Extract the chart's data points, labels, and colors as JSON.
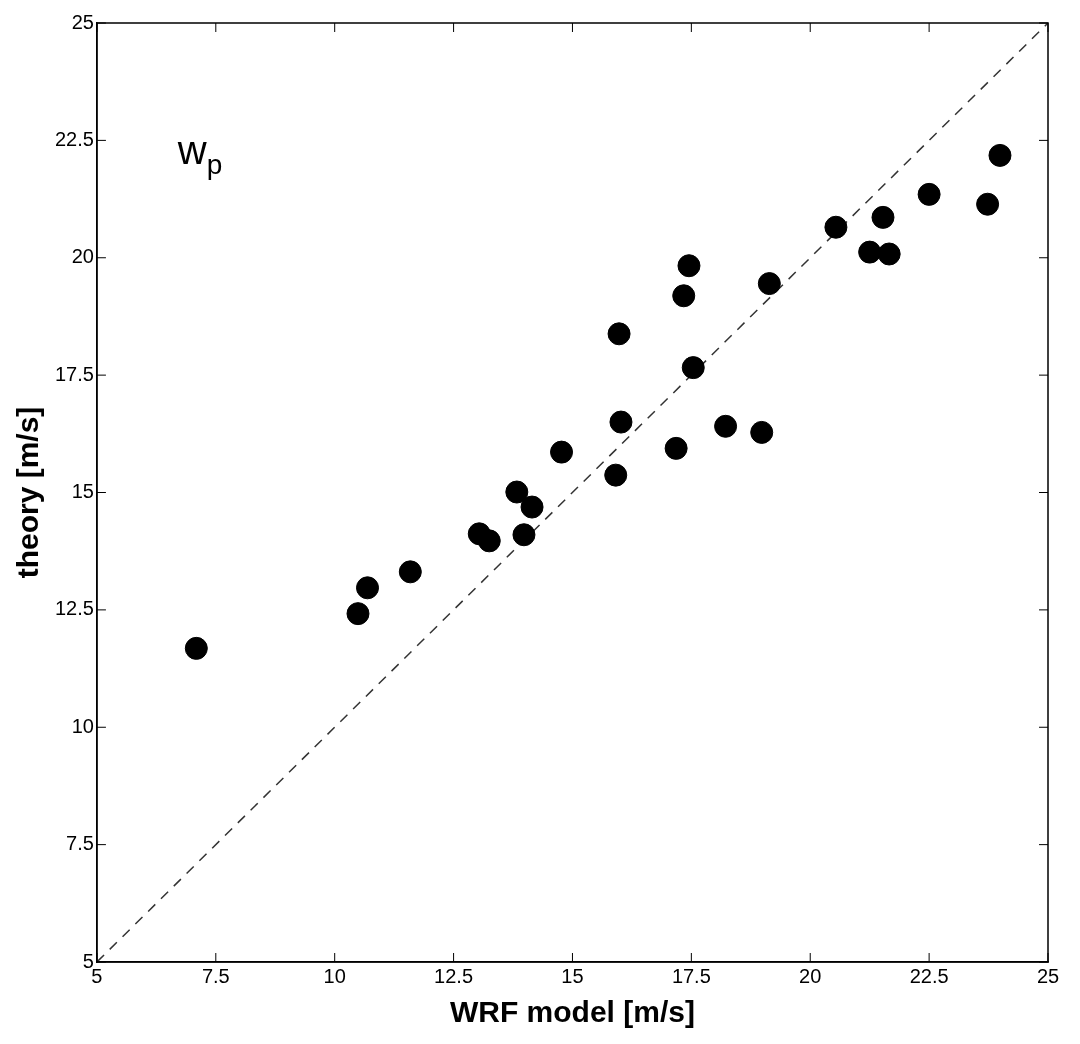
{
  "chart_data": {
    "type": "scatter",
    "xlabel": "WRF model [m/s]",
    "ylabel": "theory [m/s]",
    "annotations": [
      "w$_{p}$"
    ],
    "xlim": [
      5,
      25
    ],
    "ylim": [
      5,
      25
    ],
    "xticks": [
      5,
      7.5,
      10,
      12.5,
      15,
      17.5,
      20,
      22.5,
      25
    ],
    "yticks": [
      5,
      7.5,
      10,
      12.5,
      15,
      17.5,
      20,
      22.5,
      25
    ],
    "grid": false,
    "legend": false,
    "marker": "circle",
    "series": [
      {
        "color": "#000000",
        "x": [
          7.09,
          10.49,
          10.69,
          11.59,
          13.04,
          13.25,
          13.83,
          14.15,
          13.98,
          14.77,
          15.91,
          16.02,
          15.98,
          17.18,
          17.34,
          17.54,
          17.45,
          18.22,
          18.98,
          19.14,
          20.54,
          21.25,
          21.53,
          21.66,
          22.5,
          23.73,
          23.99
        ],
        "values": [
          11.68,
          12.42,
          12.97,
          13.31,
          14.12,
          13.97,
          15.01,
          14.69,
          14.1,
          15.86,
          15.37,
          16.5,
          18.38,
          15.94,
          19.19,
          17.66,
          19.83,
          16.41,
          16.28,
          19.45,
          20.65,
          20.12,
          20.86,
          20.08,
          21.35,
          21.14,
          22.18
        ]
      },
      {
        "type": "line",
        "color": "#333333",
        "line_style": "dashed",
        "marker": "none",
        "x": [
          5,
          25
        ],
        "values": [
          5,
          25
        ]
      }
    ]
  }
}
